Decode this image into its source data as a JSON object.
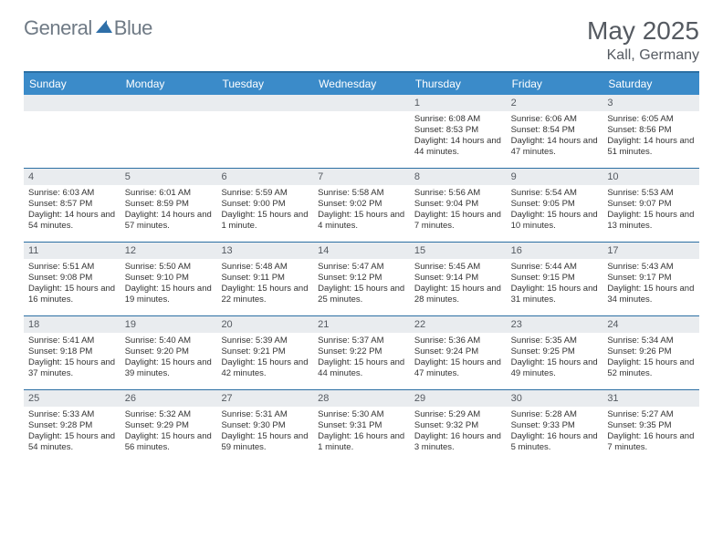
{
  "logo": {
    "part1": "General",
    "part2": "Blue"
  },
  "title": {
    "month": "May 2025",
    "location": "Kall, Germany"
  },
  "colors": {
    "header_bg": "#3b8bc9",
    "border": "#2b6fa3",
    "num_bg": "#e9ecef",
    "text": "#333333",
    "title_text": "#555a61"
  },
  "day_names": [
    "Sunday",
    "Monday",
    "Tuesday",
    "Wednesday",
    "Thursday",
    "Friday",
    "Saturday"
  ],
  "weeks": [
    [
      {
        "n": "",
        "t": ""
      },
      {
        "n": "",
        "t": ""
      },
      {
        "n": "",
        "t": ""
      },
      {
        "n": "",
        "t": ""
      },
      {
        "n": "1",
        "t": "Sunrise: 6:08 AM\nSunset: 8:53 PM\nDaylight: 14 hours and 44 minutes."
      },
      {
        "n": "2",
        "t": "Sunrise: 6:06 AM\nSunset: 8:54 PM\nDaylight: 14 hours and 47 minutes."
      },
      {
        "n": "3",
        "t": "Sunrise: 6:05 AM\nSunset: 8:56 PM\nDaylight: 14 hours and 51 minutes."
      }
    ],
    [
      {
        "n": "4",
        "t": "Sunrise: 6:03 AM\nSunset: 8:57 PM\nDaylight: 14 hours and 54 minutes."
      },
      {
        "n": "5",
        "t": "Sunrise: 6:01 AM\nSunset: 8:59 PM\nDaylight: 14 hours and 57 minutes."
      },
      {
        "n": "6",
        "t": "Sunrise: 5:59 AM\nSunset: 9:00 PM\nDaylight: 15 hours and 1 minute."
      },
      {
        "n": "7",
        "t": "Sunrise: 5:58 AM\nSunset: 9:02 PM\nDaylight: 15 hours and 4 minutes."
      },
      {
        "n": "8",
        "t": "Sunrise: 5:56 AM\nSunset: 9:04 PM\nDaylight: 15 hours and 7 minutes."
      },
      {
        "n": "9",
        "t": "Sunrise: 5:54 AM\nSunset: 9:05 PM\nDaylight: 15 hours and 10 minutes."
      },
      {
        "n": "10",
        "t": "Sunrise: 5:53 AM\nSunset: 9:07 PM\nDaylight: 15 hours and 13 minutes."
      }
    ],
    [
      {
        "n": "11",
        "t": "Sunrise: 5:51 AM\nSunset: 9:08 PM\nDaylight: 15 hours and 16 minutes."
      },
      {
        "n": "12",
        "t": "Sunrise: 5:50 AM\nSunset: 9:10 PM\nDaylight: 15 hours and 19 minutes."
      },
      {
        "n": "13",
        "t": "Sunrise: 5:48 AM\nSunset: 9:11 PM\nDaylight: 15 hours and 22 minutes."
      },
      {
        "n": "14",
        "t": "Sunrise: 5:47 AM\nSunset: 9:12 PM\nDaylight: 15 hours and 25 minutes."
      },
      {
        "n": "15",
        "t": "Sunrise: 5:45 AM\nSunset: 9:14 PM\nDaylight: 15 hours and 28 minutes."
      },
      {
        "n": "16",
        "t": "Sunrise: 5:44 AM\nSunset: 9:15 PM\nDaylight: 15 hours and 31 minutes."
      },
      {
        "n": "17",
        "t": "Sunrise: 5:43 AM\nSunset: 9:17 PM\nDaylight: 15 hours and 34 minutes."
      }
    ],
    [
      {
        "n": "18",
        "t": "Sunrise: 5:41 AM\nSunset: 9:18 PM\nDaylight: 15 hours and 37 minutes."
      },
      {
        "n": "19",
        "t": "Sunrise: 5:40 AM\nSunset: 9:20 PM\nDaylight: 15 hours and 39 minutes."
      },
      {
        "n": "20",
        "t": "Sunrise: 5:39 AM\nSunset: 9:21 PM\nDaylight: 15 hours and 42 minutes."
      },
      {
        "n": "21",
        "t": "Sunrise: 5:37 AM\nSunset: 9:22 PM\nDaylight: 15 hours and 44 minutes."
      },
      {
        "n": "22",
        "t": "Sunrise: 5:36 AM\nSunset: 9:24 PM\nDaylight: 15 hours and 47 minutes."
      },
      {
        "n": "23",
        "t": "Sunrise: 5:35 AM\nSunset: 9:25 PM\nDaylight: 15 hours and 49 minutes."
      },
      {
        "n": "24",
        "t": "Sunrise: 5:34 AM\nSunset: 9:26 PM\nDaylight: 15 hours and 52 minutes."
      }
    ],
    [
      {
        "n": "25",
        "t": "Sunrise: 5:33 AM\nSunset: 9:28 PM\nDaylight: 15 hours and 54 minutes."
      },
      {
        "n": "26",
        "t": "Sunrise: 5:32 AM\nSunset: 9:29 PM\nDaylight: 15 hours and 56 minutes."
      },
      {
        "n": "27",
        "t": "Sunrise: 5:31 AM\nSunset: 9:30 PM\nDaylight: 15 hours and 59 minutes."
      },
      {
        "n": "28",
        "t": "Sunrise: 5:30 AM\nSunset: 9:31 PM\nDaylight: 16 hours and 1 minute."
      },
      {
        "n": "29",
        "t": "Sunrise: 5:29 AM\nSunset: 9:32 PM\nDaylight: 16 hours and 3 minutes."
      },
      {
        "n": "30",
        "t": "Sunrise: 5:28 AM\nSunset: 9:33 PM\nDaylight: 16 hours and 5 minutes."
      },
      {
        "n": "31",
        "t": "Sunrise: 5:27 AM\nSunset: 9:35 PM\nDaylight: 16 hours and 7 minutes."
      }
    ]
  ]
}
